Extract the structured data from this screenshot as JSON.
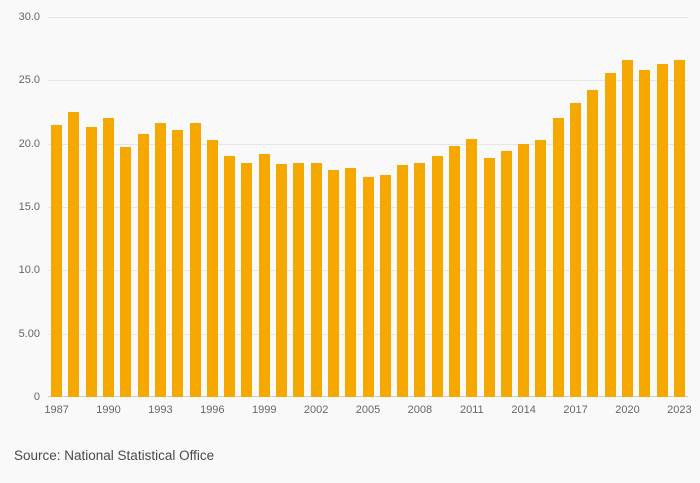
{
  "source": {
    "label": "Source: National Statistical Office"
  },
  "chart_data": {
    "type": "bar",
    "title": "",
    "xlabel": "",
    "ylabel": "",
    "categories": [
      1987,
      1988,
      1989,
      1990,
      1991,
      1992,
      1993,
      1994,
      1995,
      1996,
      1997,
      1998,
      1999,
      2000,
      2001,
      2002,
      2003,
      2004,
      2005,
      2006,
      2007,
      2008,
      2009,
      2010,
      2011,
      2012,
      2013,
      2014,
      2015,
      2016,
      2017,
      2018,
      2019,
      2020,
      2021,
      2022,
      2023
    ],
    "values": [
      21.5,
      22.5,
      21.3,
      22.0,
      19.7,
      20.8,
      21.6,
      21.1,
      21.6,
      20.3,
      19.0,
      18.5,
      19.2,
      18.4,
      18.5,
      18.5,
      17.9,
      18.1,
      17.4,
      17.5,
      18.3,
      18.5,
      19.0,
      19.8,
      20.4,
      18.9,
      19.4,
      20.0,
      20.3,
      22.0,
      23.2,
      24.2,
      25.6,
      26.6,
      25.8,
      26.3,
      26.6
    ],
    "ylim": [
      0,
      30
    ],
    "yticks": [
      {
        "value": 0,
        "label": "0"
      },
      {
        "value": 5,
        "label": "5.00"
      },
      {
        "value": 10,
        "label": "10.0"
      },
      {
        "value": 15,
        "label": "15.0"
      },
      {
        "value": 20,
        "label": "20.0"
      },
      {
        "value": 25,
        "label": "25.0"
      },
      {
        "value": 30,
        "label": "30.0"
      }
    ],
    "xtick_every": 3,
    "grid": true,
    "legend": "none",
    "bar_color": "#F5A800",
    "background": "#f9f9f9",
    "gridline_color": "#e6e6e6",
    "axis_line_color": "#cccccc"
  }
}
